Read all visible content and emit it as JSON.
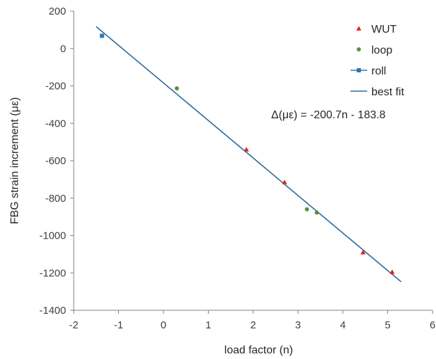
{
  "chart_data": {
    "type": "scatter",
    "xlabel": "load factor (n)",
    "ylabel": "FBG strain increment (με)",
    "xlim": [
      -2,
      6
    ],
    "ylim": [
      -1400,
      200
    ],
    "xticks": [
      -2,
      -1,
      0,
      1,
      2,
      3,
      4,
      5,
      6
    ],
    "yticks": [
      200,
      0,
      -200,
      -400,
      -600,
      -800,
      -1000,
      -1200,
      -1400
    ],
    "grid": false,
    "legend_position": "top-right",
    "annotation": "Δ(με) = -200.7n - 183.8",
    "series": [
      {
        "name": "WUT",
        "marker": "triangle",
        "color": "#e0211c",
        "points": [
          [
            1.85,
            -540
          ],
          [
            2.7,
            -715
          ],
          [
            4.45,
            -1090
          ],
          [
            5.1,
            -1195
          ]
        ]
      },
      {
        "name": "loop",
        "marker": "circle",
        "color": "#5b8f3a",
        "points": [
          [
            0.3,
            -213
          ],
          [
            3.2,
            -860
          ],
          [
            3.42,
            -877
          ]
        ]
      },
      {
        "name": "roll",
        "marker": "square",
        "color": "#2e75b6",
        "points": [
          [
            -1.37,
            68
          ]
        ]
      },
      {
        "name": "best fit",
        "type": "line",
        "color": "#2e6b9a",
        "x_range": [
          -1.5,
          5.3
        ],
        "slope": -200.7,
        "intercept": -183.8
      }
    ]
  }
}
